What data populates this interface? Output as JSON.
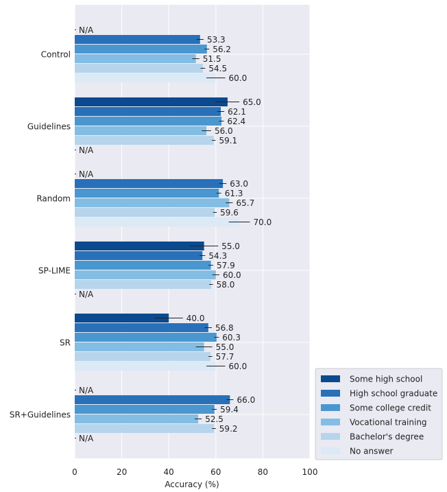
{
  "chart_data": {
    "type": "bar",
    "orientation": "horizontal",
    "xlabel": "Accuracy (%)",
    "xlim": [
      0,
      100
    ],
    "xticks": [
      "0",
      "20",
      "40",
      "60",
      "80",
      "100"
    ],
    "grid": true,
    "legend_position": "bottom-right",
    "categories": [
      "Control",
      "Guidelines",
      "Random",
      "SP-LIME",
      "SR",
      "SR+Guidelines"
    ],
    "series": [
      {
        "name": "Some high school",
        "color": "#0b4a8f",
        "values": [
          null,
          65.0,
          null,
          55.0,
          40.0,
          null
        ],
        "labels": [
          "N/A",
          "65.0",
          "N/A",
          "55.0",
          "40.0",
          "N/A"
        ],
        "error": [
          0,
          5,
          0,
          6,
          6,
          0
        ]
      },
      {
        "name": "High school graduate",
        "color": "#2870b8",
        "values": [
          53.3,
          62.1,
          63.0,
          54.3,
          56.8,
          66.0
        ],
        "labels": [
          "53.3",
          "62.1",
          "63.0",
          "54.3",
          "56.8",
          "66.0"
        ],
        "error": [
          1.5,
          1.5,
          1.5,
          1.2,
          1.5,
          1.5
        ]
      },
      {
        "name": "Some college credit",
        "color": "#4a97d0",
        "values": [
          56.2,
          62.4,
          61.3,
          57.9,
          60.3,
          59.4
        ],
        "labels": [
          "56.2",
          "62.4",
          "61.3",
          "57.9",
          "60.3",
          "59.4"
        ],
        "error": [
          1,
          1,
          1,
          1,
          1,
          1
        ]
      },
      {
        "name": "Vocational training",
        "color": "#84bde3",
        "values": [
          51.5,
          56.0,
          65.7,
          60.0,
          55.0,
          52.5
        ],
        "labels": [
          "51.5",
          "56.0",
          "65.7",
          "60.0",
          "55.0",
          "52.5"
        ],
        "error": [
          1.5,
          2,
          1.5,
          1.5,
          3.5,
          1.5
        ]
      },
      {
        "name": "Bachelor's degree",
        "color": "#b6d5ec",
        "values": [
          54.5,
          59.1,
          59.6,
          58.0,
          57.7,
          59.2
        ],
        "labels": [
          "54.5",
          "59.1",
          "59.6",
          "58.0",
          "57.7",
          "59.2"
        ],
        "error": [
          1,
          0.8,
          0.8,
          0.8,
          0.8,
          0.8
        ]
      },
      {
        "name": "No answer",
        "color": "#dce9f6",
        "values": [
          60.0,
          null,
          70.0,
          null,
          60.0,
          null
        ],
        "labels": [
          "60.0",
          "N/A",
          "70.0",
          "N/A",
          "60.0",
          "N/A"
        ],
        "error": [
          4,
          0,
          4.5,
          0,
          4,
          0
        ]
      }
    ]
  }
}
